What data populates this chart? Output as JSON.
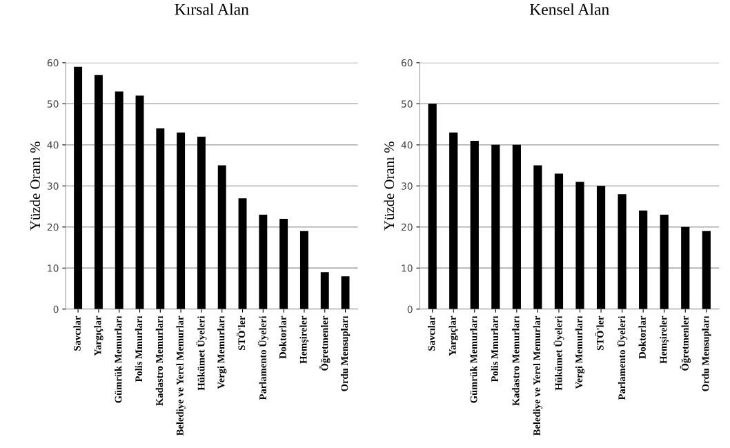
{
  "chart_data": [
    {
      "type": "bar",
      "title": "Kırsal Alan",
      "ylabel": "Yüzde Oranı %",
      "categories": [
        "Savcılar",
        "Yargıçlar",
        "Gümrük Memurları",
        "Polis Mmurları",
        "Kadastro Memurları",
        "Belediye ve Yerel Memurlar",
        "Hükümet Üyeleri",
        "Vergi Memurları",
        "STÖ'ler",
        "Parlamento Üyeleri",
        "Doktorlar",
        "Hemşireler",
        "Öğretmenler",
        "Ordu Mensupları"
      ],
      "values": [
        59,
        57,
        53,
        52,
        44,
        43,
        42,
        35,
        27,
        23,
        22,
        19,
        9,
        8
      ],
      "color": "#000000",
      "ylim": [
        0,
        60
      ],
      "yticks": [
        0,
        10,
        20,
        30,
        40,
        50,
        60
      ],
      "grid": "y",
      "legend": false
    },
    {
      "type": "bar",
      "title": "Kensel Alan",
      "ylabel": "Yüzde Oranı %",
      "categories": [
        "Savcılar",
        "Yargıçlar",
        "Gümrük Memurları",
        "Polis Mmurları",
        "Kadastro Memurları",
        "Belediye ve Yerel Memurlar",
        "Hükümet Üyeleri",
        "Vergi Memurları",
        "STÖ'ler",
        "Parlamento Üyeleri",
        "Doktorlar",
        "Hemşireler",
        "Öğretmenler",
        "Ordu Mensupları"
      ],
      "values": [
        50,
        43,
        41,
        40,
        40,
        35,
        33,
        31,
        30,
        28,
        24,
        23,
        20,
        19
      ],
      "color": "#000000",
      "ylim": [
        0,
        60
      ],
      "yticks": [
        0,
        10,
        20,
        30,
        40,
        50,
        60
      ],
      "grid": "y",
      "legend": false
    }
  ]
}
